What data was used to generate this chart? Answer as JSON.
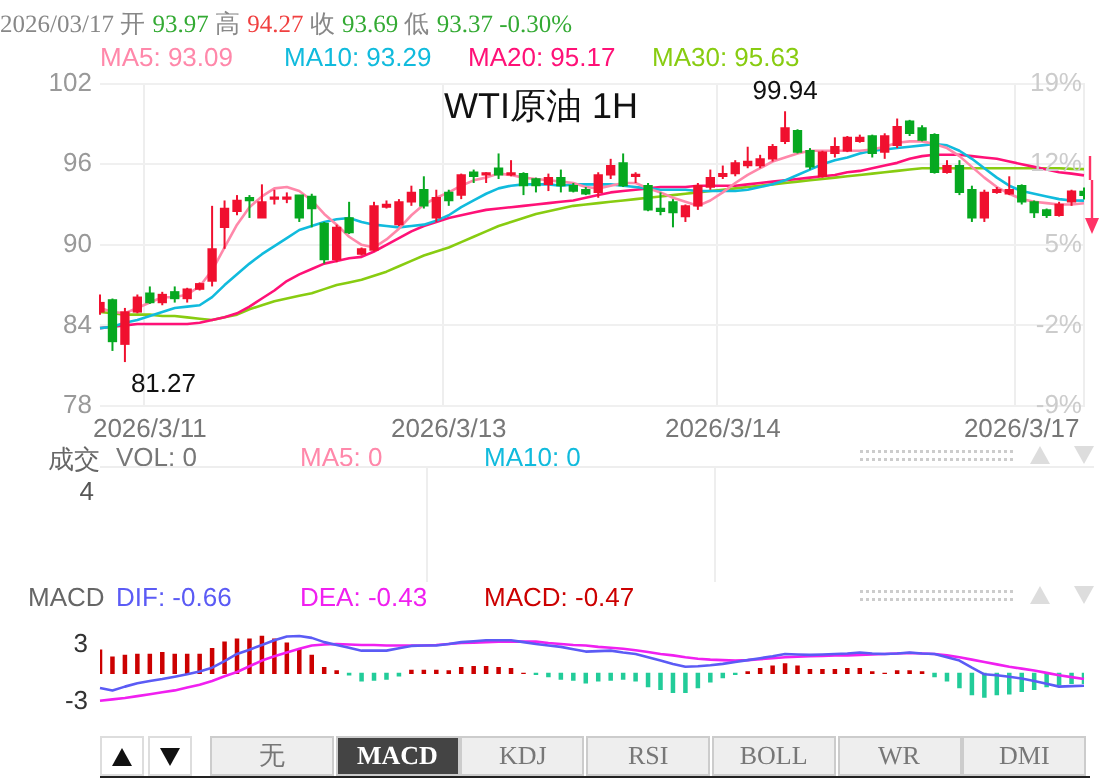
{
  "chart_data": [
    {
      "type": "candlestick",
      "title": "WTI原油 1H",
      "subtitle": "2026/03/17 开 93.97 高 94.27 收 93.69 低 93.37 -0.30%",
      "categories": [
        null,
        null,
        null,
        null,
        "2026/3/11",
        null,
        null,
        null,
        null,
        null,
        null,
        null,
        null,
        null,
        null,
        null,
        null,
        null,
        null,
        null,
        null,
        null,
        null,
        null,
        null,
        null,
        null,
        null,
        "2026/3/13",
        null,
        null,
        null,
        null,
        null,
        null,
        null,
        null,
        null,
        null,
        null,
        null,
        null,
        null,
        null,
        null,
        null,
        null,
        null,
        null,
        null,
        "2026/3/14",
        null,
        null,
        null,
        null,
        null,
        null,
        null,
        null,
        null,
        null,
        null,
        null,
        null,
        null,
        null,
        null,
        null,
        null,
        null,
        null,
        null,
        null,
        null,
        "2026/3/17",
        null,
        null,
        null,
        null,
        null
      ],
      "ohlc": [
        [
          85.0,
          86.3,
          84.8,
          85.7
        ],
        [
          85.9,
          86.0,
          82.1,
          82.8
        ],
        [
          82.6,
          85.3,
          81.27,
          85.0
        ],
        [
          85.0,
          86.3,
          84.9,
          86.1
        ],
        [
          86.4,
          86.9,
          85.6,
          85.7
        ],
        [
          85.7,
          86.5,
          85.5,
          86.3
        ],
        [
          86.5,
          86.9,
          85.7,
          86.0
        ],
        [
          86.0,
          86.8,
          85.7,
          86.7
        ],
        [
          86.7,
          87.2,
          86.6,
          87.1
        ],
        [
          87.3,
          92.9,
          86.9,
          89.7
        ],
        [
          91.3,
          93.3,
          89.7,
          92.7
        ],
        [
          92.5,
          93.7,
          92.2,
          93.3
        ],
        [
          93.5,
          93.7,
          92.0,
          93.3
        ],
        [
          92.0,
          94.5,
          92.0,
          93.2
        ],
        [
          93.4,
          94.1,
          93.0,
          93.5
        ],
        [
          93.4,
          93.9,
          93.1,
          93.5
        ],
        [
          93.7,
          93.7,
          91.7,
          92.0
        ],
        [
          93.6,
          93.8,
          91.3,
          92.7
        ],
        [
          91.6,
          91.7,
          88.6,
          88.9
        ],
        [
          88.9,
          91.5,
          88.7,
          91.3
        ],
        [
          92.0,
          93.2,
          90.8,
          90.9
        ],
        [
          89.3,
          89.8,
          89.2,
          89.7
        ],
        [
          89.6,
          93.2,
          89.5,
          92.9
        ],
        [
          92.8,
          93.3,
          92.7,
          93.0
        ],
        [
          91.5,
          93.4,
          91.4,
          93.2
        ],
        [
          93.2,
          94.4,
          92.9,
          93.9
        ],
        [
          94.1,
          95.1,
          92.7,
          92.9
        ],
        [
          92.0,
          94.1,
          91.7,
          93.5
        ],
        [
          93.9,
          94.1,
          92.9,
          93.3
        ],
        [
          93.7,
          95.3,
          93.4,
          95.2
        ],
        [
          95.4,
          95.6,
          94.6,
          95.1
        ],
        [
          95.2,
          95.4,
          94.6,
          95.3
        ],
        [
          95.7,
          96.8,
          94.9,
          95.2
        ],
        [
          95.2,
          96.3,
          95.1,
          95.3
        ],
        [
          95.3,
          95.4,
          93.7,
          94.4
        ],
        [
          94.9,
          95.0,
          93.9,
          94.4
        ],
        [
          94.5,
          95.3,
          94.0,
          95.0
        ],
        [
          95.0,
          95.6,
          93.9,
          94.4
        ],
        [
          94.4,
          94.6,
          93.9,
          94.0
        ],
        [
          94.1,
          94.3,
          93.7,
          93.8
        ],
        [
          93.9,
          95.4,
          93.5,
          95.2
        ],
        [
          95.2,
          96.4,
          94.9,
          95.9
        ],
        [
          96.1,
          96.8,
          94.3,
          94.4
        ],
        [
          95.1,
          95.4,
          94.6,
          95.2
        ],
        [
          94.4,
          94.6,
          92.5,
          92.6
        ],
        [
          92.7,
          93.9,
          92.2,
          92.5
        ],
        [
          93.2,
          93.4,
          91.3,
          92.4
        ],
        [
          92.1,
          93.0,
          91.7,
          92.9
        ],
        [
          92.9,
          94.6,
          92.6,
          94.4
        ],
        [
          94.3,
          95.6,
          94.1,
          95.0
        ],
        [
          95.1,
          95.9,
          94.9,
          95.3
        ],
        [
          95.3,
          96.3,
          95.1,
          96.1
        ],
        [
          95.9,
          97.3,
          95.7,
          96.2
        ],
        [
          95.9,
          96.7,
          95.7,
          96.4
        ],
        [
          96.4,
          97.5,
          96.2,
          97.3
        ],
        [
          97.7,
          99.94,
          97.5,
          98.7
        ],
        [
          98.5,
          98.6,
          96.8,
          96.9
        ],
        [
          97.0,
          97.2,
          95.6,
          95.8
        ],
        [
          95.1,
          97.0,
          95.0,
          96.9
        ],
        [
          96.8,
          98.0,
          96.5,
          97.3
        ],
        [
          97.0,
          98.1,
          96.9,
          98.0
        ],
        [
          97.7,
          98.2,
          97.6,
          98.0
        ],
        [
          98.1,
          98.2,
          96.5,
          96.8
        ],
        [
          96.9,
          98.3,
          96.4,
          98.1
        ],
        [
          97.4,
          99.4,
          97.2,
          98.8
        ],
        [
          99.2,
          99.3,
          98.1,
          98.3
        ],
        [
          98.7,
          98.9,
          97.7,
          97.8
        ],
        [
          98.2,
          98.3,
          95.3,
          95.4
        ],
        [
          95.4,
          96.3,
          95.3,
          95.9
        ],
        [
          95.9,
          96.3,
          93.7,
          93.9
        ],
        [
          94.1,
          94.4,
          91.7,
          92.0
        ],
        [
          92.0,
          94.1,
          91.7,
          93.9
        ],
        [
          93.9,
          94.3,
          93.8,
          94.1
        ],
        [
          93.8,
          95.1,
          93.7,
          94.1
        ],
        [
          94.4,
          94.5,
          93.0,
          93.2
        ],
        [
          93.2,
          93.3,
          92.0,
          92.4
        ],
        [
          92.6,
          92.7,
          92.0,
          92.2
        ],
        [
          92.2,
          93.2,
          92.1,
          93.0
        ],
        [
          93.2,
          94.1,
          92.9,
          94.0
        ],
        [
          93.97,
          94.27,
          93.37,
          93.69
        ]
      ],
      "series": [
        {
          "name": "MA5: 93.09",
          "type": "line",
          "color": "#ff88aa",
          "values": [
            85.3,
            85.0,
            84.9,
            85.3,
            85.7,
            86.1,
            86.1,
            86.3,
            86.9,
            88.1,
            89.8,
            91.5,
            92.8,
            93.6,
            94.2,
            94.3,
            94.0,
            93.3,
            92.3,
            91.5,
            90.6,
            90.0,
            89.8,
            90.4,
            91.2,
            92.2,
            93.0,
            93.5,
            93.9,
            94.4,
            94.8,
            95.0,
            95.3,
            95.2,
            95.0,
            94.9,
            94.8,
            94.7,
            94.6,
            94.3,
            94.2,
            94.4,
            94.6,
            94.6,
            94.2,
            93.9,
            93.5,
            93.2,
            92.9,
            93.3,
            93.9,
            94.6,
            95.2,
            95.7,
            96.2,
            96.5,
            96.8,
            97.0,
            97.0,
            97.0,
            97.0,
            97.0,
            97.1,
            97.3,
            97.6,
            97.7,
            97.7,
            97.5,
            97.2,
            96.6,
            95.8,
            95.0,
            94.3,
            93.8,
            93.4,
            93.2,
            93.1,
            93.0,
            93.0,
            93.09
          ]
        },
        {
          "name": "MA10: 93.29",
          "type": "line",
          "color": "#11bbdd",
          "values": [
            83.8,
            83.9,
            84.2,
            84.4,
            84.7,
            85.0,
            85.3,
            85.4,
            85.5,
            86.1,
            87.0,
            87.8,
            88.6,
            89.3,
            89.9,
            90.5,
            91.1,
            91.4,
            91.7,
            91.9,
            92.0,
            91.7,
            91.5,
            91.4,
            91.3,
            91.4,
            91.5,
            91.8,
            92.2,
            92.8,
            93.3,
            93.8,
            94.2,
            94.4,
            94.5,
            94.5,
            94.5,
            94.4,
            94.5,
            94.5,
            94.5,
            94.5,
            94.4,
            94.3,
            94.2,
            94.1,
            94.1,
            94.1,
            94.0,
            94.0,
            94.0,
            94.0,
            94.1,
            94.3,
            94.5,
            94.8,
            95.2,
            95.6,
            96.0,
            96.3,
            96.5,
            96.8,
            97.0,
            97.1,
            97.2,
            97.3,
            97.4,
            97.5,
            97.4,
            97.0,
            96.4,
            95.7,
            95.0,
            94.4,
            94.0,
            93.8,
            93.6,
            93.4,
            93.3,
            93.29
          ]
        },
        {
          "name": "MA20: 95.17",
          "type": "line",
          "color": "#ff1177",
          "values": [
            83.8,
            83.9,
            84.0,
            84.1,
            84.1,
            84.1,
            84.1,
            84.1,
            84.2,
            84.4,
            84.6,
            84.9,
            85.4,
            86.0,
            86.6,
            87.3,
            87.8,
            88.2,
            88.6,
            88.8,
            89.0,
            89.1,
            89.5,
            90.0,
            90.5,
            91.0,
            91.4,
            91.7,
            92.0,
            92.2,
            92.4,
            92.6,
            92.7,
            92.8,
            92.9,
            93.0,
            93.1,
            93.2,
            93.3,
            93.5,
            93.7,
            93.9,
            94.0,
            94.1,
            94.2,
            94.3,
            94.3,
            94.3,
            94.4,
            94.4,
            94.4,
            94.4,
            94.5,
            94.6,
            94.7,
            94.8,
            94.9,
            95.0,
            95.1,
            95.2,
            95.4,
            95.5,
            95.7,
            95.9,
            96.1,
            96.4,
            96.6,
            96.7,
            96.7,
            96.7,
            96.6,
            96.5,
            96.4,
            96.2,
            96.0,
            95.8,
            95.6,
            95.4,
            95.3,
            95.17
          ]
        },
        {
          "name": "MA30: 95.63",
          "type": "line",
          "color": "#88cc11",
          "values": [
            85.0,
            84.9,
            84.8,
            84.8,
            84.8,
            84.7,
            84.7,
            84.6,
            84.5,
            84.4,
            84.6,
            84.8,
            85.2,
            85.5,
            85.8,
            86.0,
            86.2,
            86.4,
            86.7,
            87.0,
            87.2,
            87.4,
            87.7,
            88.0,
            88.4,
            88.8,
            89.2,
            89.5,
            89.8,
            90.2,
            90.6,
            91.0,
            91.4,
            91.7,
            92.0,
            92.3,
            92.5,
            92.7,
            92.9,
            93.0,
            93.1,
            93.2,
            93.3,
            93.4,
            93.5,
            93.6,
            93.7,
            93.8,
            93.9,
            94.0,
            94.1,
            94.2,
            94.3,
            94.4,
            94.5,
            94.6,
            94.7,
            94.8,
            94.9,
            95.0,
            95.1,
            95.2,
            95.3,
            95.4,
            95.5,
            95.6,
            95.7,
            95.7,
            95.7,
            95.7,
            95.7,
            95.7,
            95.7,
            95.7,
            95.7,
            95.7,
            95.7,
            95.7,
            95.65,
            95.63
          ]
        }
      ],
      "ylim": [
        78,
        102
      ],
      "yticks": [
        78,
        84,
        90,
        96,
        102
      ],
      "y2lim": [
        -9,
        19
      ],
      "y2ticks": [
        {
          "value": -9,
          "label": "-9%"
        },
        {
          "value": -2,
          "label": "-2%"
        },
        {
          "value": 5,
          "label": "5%"
        },
        {
          "value": 12,
          "label": "12%"
        },
        {
          "value": 19,
          "label": "19%"
        }
      ],
      "grid": true,
      "legend": "top",
      "annotations": [
        "81.27",
        "99.94"
      ]
    },
    {
      "type": "other",
      "ylabel": "成交",
      "series": [
        {
          "name": "VOL: 0",
          "color": "#777777"
        },
        {
          "name": "MA5: 0",
          "color": "#ff88aa"
        },
        {
          "name": "MA10: 0",
          "color": "#11bbdd"
        }
      ],
      "annotations": [
        "4"
      ]
    },
    {
      "type": "bar",
      "title": "MACD",
      "categories": [
        null,
        null,
        null,
        null,
        null,
        null,
        null,
        null,
        null,
        null,
        null,
        null,
        null,
        null,
        null,
        null,
        null,
        null,
        null,
        null,
        null,
        null,
        null,
        null,
        null,
        null,
        null,
        null,
        null,
        null,
        null,
        null,
        null,
        null,
        null,
        null,
        null,
        null,
        null,
        null,
        null,
        null,
        null,
        null,
        null,
        null,
        null,
        null,
        null,
        null,
        null,
        null,
        null,
        null,
        null,
        null,
        null,
        null,
        null,
        null,
        null,
        null,
        null,
        null,
        null,
        null,
        null,
        null,
        null,
        null,
        null,
        null,
        null,
        null,
        null,
        null,
        null,
        null,
        null,
        null
      ],
      "series": [
        {
          "name": "DIF: -0.66",
          "type": "line",
          "color": "#5b5bf5",
          "values": [
            -1.55,
            -1.8,
            -1.4,
            -1.05,
            -0.8,
            -0.6,
            -0.35,
            -0.1,
            0.2,
            0.6,
            1.3,
            2.05,
            2.5,
            3.0,
            3.5,
            3.9,
            3.95,
            3.75,
            3.3,
            3.0,
            2.7,
            2.4,
            2.4,
            2.4,
            2.65,
            2.9,
            2.95,
            2.95,
            3.1,
            3.3,
            3.4,
            3.5,
            3.5,
            3.5,
            3.3,
            3.1,
            2.95,
            2.8,
            2.55,
            2.3,
            2.35,
            2.4,
            2.2,
            2.05,
            1.7,
            1.35,
            1.0,
            0.7,
            0.75,
            0.85,
            1.0,
            1.2,
            1.4,
            1.6,
            1.8,
            2.05,
            2.0,
            1.95,
            2.0,
            2.05,
            2.1,
            2.2,
            2.1,
            2.05,
            2.1,
            2.2,
            2.1,
            2.05,
            1.7,
            1.35,
            0.6,
            -0.1,
            -0.2,
            -0.35,
            -0.55,
            -0.8,
            -1.1,
            -1.4,
            -1.35,
            -1.3
          ]
        },
        {
          "name": "DEA: -0.43",
          "type": "line",
          "color": "#f020f0",
          "values": [
            -2.9,
            -2.75,
            -2.6,
            -2.4,
            -2.2,
            -2.0,
            -1.8,
            -1.5,
            -1.2,
            -0.8,
            -0.3,
            0.15,
            0.75,
            1.35,
            1.8,
            2.2,
            2.6,
            2.95,
            3.05,
            3.1,
            3.05,
            3.0,
            3.0,
            2.95,
            2.95,
            2.95,
            2.95,
            3.0,
            3.1,
            3.2,
            3.25,
            3.3,
            3.35,
            3.35,
            3.35,
            3.35,
            3.2,
            3.1,
            3.0,
            2.95,
            2.8,
            2.7,
            2.6,
            2.45,
            2.25,
            2.05,
            1.9,
            1.7,
            1.55,
            1.45,
            1.4,
            1.35,
            1.4,
            1.5,
            1.6,
            1.7,
            1.75,
            1.8,
            1.85,
            1.9,
            1.9,
            1.95,
            2.0,
            2.05,
            2.1,
            2.15,
            2.1,
            2.05,
            1.9,
            1.7,
            1.45,
            1.2,
            0.95,
            0.7,
            0.5,
            0.3,
            0.05,
            -0.2,
            -0.4,
            -0.6
          ]
        },
        {
          "name": "MACD: -0.47",
          "type": "bar",
          "color": "#cc0000",
          "values": [
            2.45,
            1.7,
            1.9,
            2.0,
            2.0,
            2.2,
            2.0,
            2.0,
            2.0,
            2.6,
            3.3,
            3.6,
            3.6,
            3.9,
            3.6,
            3.2,
            2.6,
            1.9,
            0.6,
            0.25,
            -0.15,
            -0.8,
            -0.7,
            -0.6,
            -0.25,
            0.3,
            0.3,
            0.3,
            0.25,
            0.6,
            0.7,
            0.7,
            0.6,
            0.5,
            0,
            -0.1,
            -0.35,
            -0.6,
            -0.7,
            -1.0,
            -0.8,
            -0.7,
            -0.6,
            -0.8,
            -1.4,
            -1.7,
            -2.0,
            -2.0,
            -1.5,
            -0.9,
            -0.45,
            -0.1,
            0.15,
            0.5,
            0.75,
            1.0,
            0.75,
            0.4,
            0.4,
            0.4,
            0.5,
            0.5,
            0.15,
            0,
            0.25,
            0.25,
            0.15,
            -0.35,
            -0.8,
            -1.5,
            -2.25,
            -2.5,
            -2.25,
            -2.15,
            -1.9,
            -1.7,
            -1.4,
            -1.2,
            -1.05,
            -1.05
          ],
          "colors": [
            "#cc0000",
            "#cc0000",
            "#cc0000",
            "#cc0000",
            "#cc0000",
            "#cc0000",
            "#cc0000",
            "#cc0000",
            "#cc0000",
            "#cc0000",
            "#cc0000",
            "#cc0000",
            "#cc0000",
            "#cc0000",
            "#cc0000",
            "#cc0000",
            "#cc0000",
            "#cc0000",
            "#cc0000",
            "#cc0000",
            "#22cc99",
            "#22cc99",
            "#22cc99",
            "#22cc99",
            "#22cc99",
            "#cc0000",
            "#cc0000",
            "#cc0000",
            "#cc0000",
            "#cc0000",
            "#cc0000",
            "#cc0000",
            "#cc0000",
            "#cc0000",
            "#cc0000",
            "#22cc99",
            "#22cc99",
            "#22cc99",
            "#22cc99",
            "#22cc99",
            "#22cc99",
            "#22cc99",
            "#22cc99",
            "#22cc99",
            "#22cc99",
            "#22cc99",
            "#22cc99",
            "#22cc99",
            "#22cc99",
            "#22cc99",
            "#22cc99",
            "#22cc99",
            "#cc0000",
            "#cc0000",
            "#cc0000",
            "#cc0000",
            "#cc0000",
            "#cc0000",
            "#cc0000",
            "#cc0000",
            "#cc0000",
            "#cc0000",
            "#cc0000",
            "#cc0000",
            "#cc0000",
            "#cc0000",
            "#cc0000",
            "#22cc99",
            "#22cc99",
            "#22cc99",
            "#22cc99",
            "#22cc99",
            "#22cc99",
            "#22cc99",
            "#22cc99",
            "#22cc99",
            "#22cc99",
            "#22cc99",
            "#22cc99",
            "#22cc99"
          ]
        }
      ],
      "ylim": [
        -3.7,
        4.2
      ],
      "yticks": [
        -3,
        3
      ],
      "legend": "top",
      "tick_labels": "y"
    },
    {
      "type": "other",
      "annotations": [
        "无",
        "MACD",
        "KDJ",
        "RSI",
        "BOLL",
        "WR",
        "DMI"
      ]
    }
  ]
}
